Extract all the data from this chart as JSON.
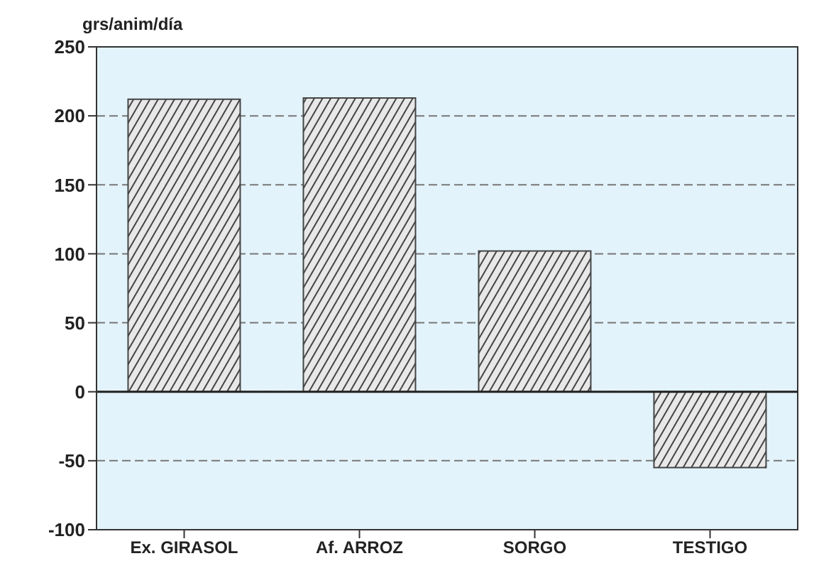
{
  "chart_data": {
    "type": "bar",
    "ylabel": "grs/anim/día",
    "categories": [
      "Ex. GIRASOL",
      "Af. ARROZ",
      "SORGO",
      "TESTIGO"
    ],
    "values": [
      212,
      213,
      102,
      -55
    ],
    "color": "#444444",
    "ylim": [
      -100,
      250
    ],
    "yticks": [
      -100,
      -50,
      0,
      50,
      100,
      150,
      200,
      250
    ],
    "grid": "y"
  }
}
